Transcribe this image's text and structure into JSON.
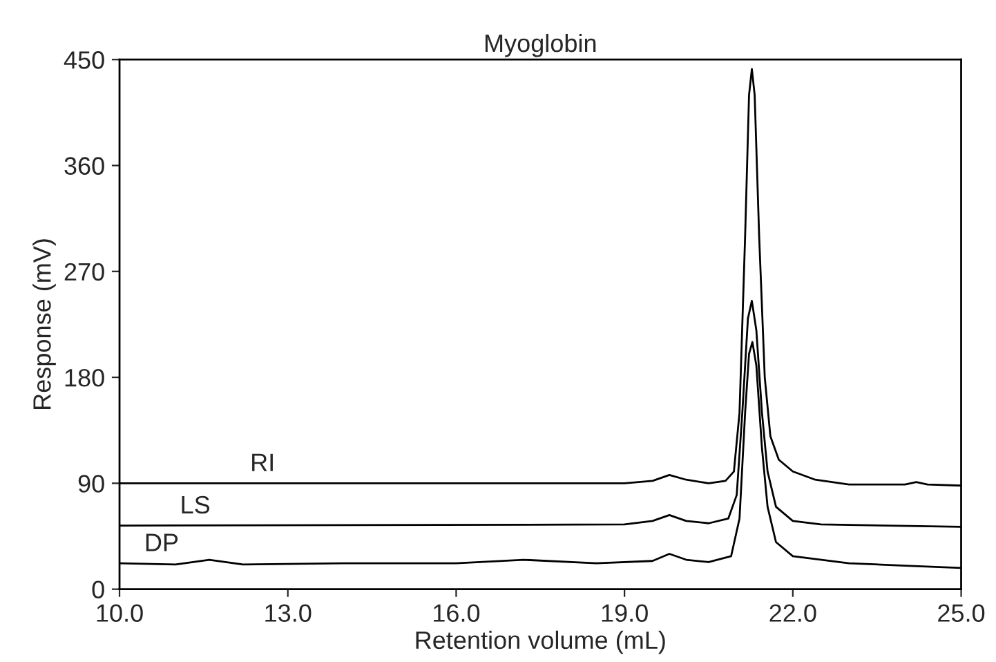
{
  "chart_data": {
    "type": "line",
    "title": "Myoglobin",
    "xlabel": "Retention volume (mL)",
    "ylabel": "Response (mV)",
    "xlim": [
      10,
      25
    ],
    "xticks": [
      {
        "value": 10,
        "label": "10.0"
      },
      {
        "value": 13,
        "label": "13.0"
      },
      {
        "value": 16,
        "label": "16.0"
      },
      {
        "value": 19,
        "label": "19.0"
      },
      {
        "value": 22,
        "label": "22.0"
      },
      {
        "value": 25,
        "label": "25.0"
      }
    ],
    "ylim": [
      0,
      450
    ],
    "yticks": [
      0,
      90,
      180,
      270,
      360,
      450
    ],
    "grid": false,
    "legend": false,
    "marker": "none",
    "line_style": "solid",
    "series": [
      {
        "name": "RI",
        "color": "#000000",
        "x": [
          10,
          19.0,
          19.5,
          19.8,
          20.1,
          20.5,
          20.8,
          20.95,
          21.05,
          21.15,
          21.22,
          21.27,
          21.32,
          21.4,
          21.5,
          21.6,
          21.75,
          22.0,
          22.4,
          23,
          24.0,
          24.2,
          24.4,
          25
        ],
        "values": [
          90,
          90,
          92,
          97,
          93,
          90,
          92,
          100,
          150,
          300,
          420,
          442,
          420,
          300,
          180,
          130,
          110,
          100,
          93,
          89,
          89,
          91,
          89,
          88
        ]
      },
      {
        "name": "LS",
        "color": "#000000",
        "x": [
          10,
          19,
          19.5,
          19.8,
          20.1,
          20.5,
          20.85,
          21.0,
          21.1,
          21.2,
          21.27,
          21.35,
          21.45,
          21.55,
          21.7,
          22.0,
          22.5,
          25
        ],
        "values": [
          54,
          55,
          58,
          63,
          58,
          56,
          60,
          80,
          150,
          230,
          245,
          220,
          150,
          100,
          70,
          58,
          55,
          53
        ]
      },
      {
        "name": "DP",
        "color": "#000000",
        "x": [
          10,
          11.0,
          11.6,
          12.2,
          14,
          16,
          17.2,
          18.5,
          19.5,
          19.8,
          20.1,
          20.5,
          20.9,
          21.05,
          21.15,
          21.22,
          21.28,
          21.35,
          21.45,
          21.55,
          21.7,
          22.0,
          23,
          24,
          25
        ],
        "values": [
          22,
          21,
          25,
          21,
          22,
          22,
          25,
          22,
          24,
          30,
          25,
          23,
          28,
          60,
          150,
          200,
          210,
          190,
          120,
          70,
          40,
          28,
          22,
          20,
          18
        ]
      }
    ]
  }
}
